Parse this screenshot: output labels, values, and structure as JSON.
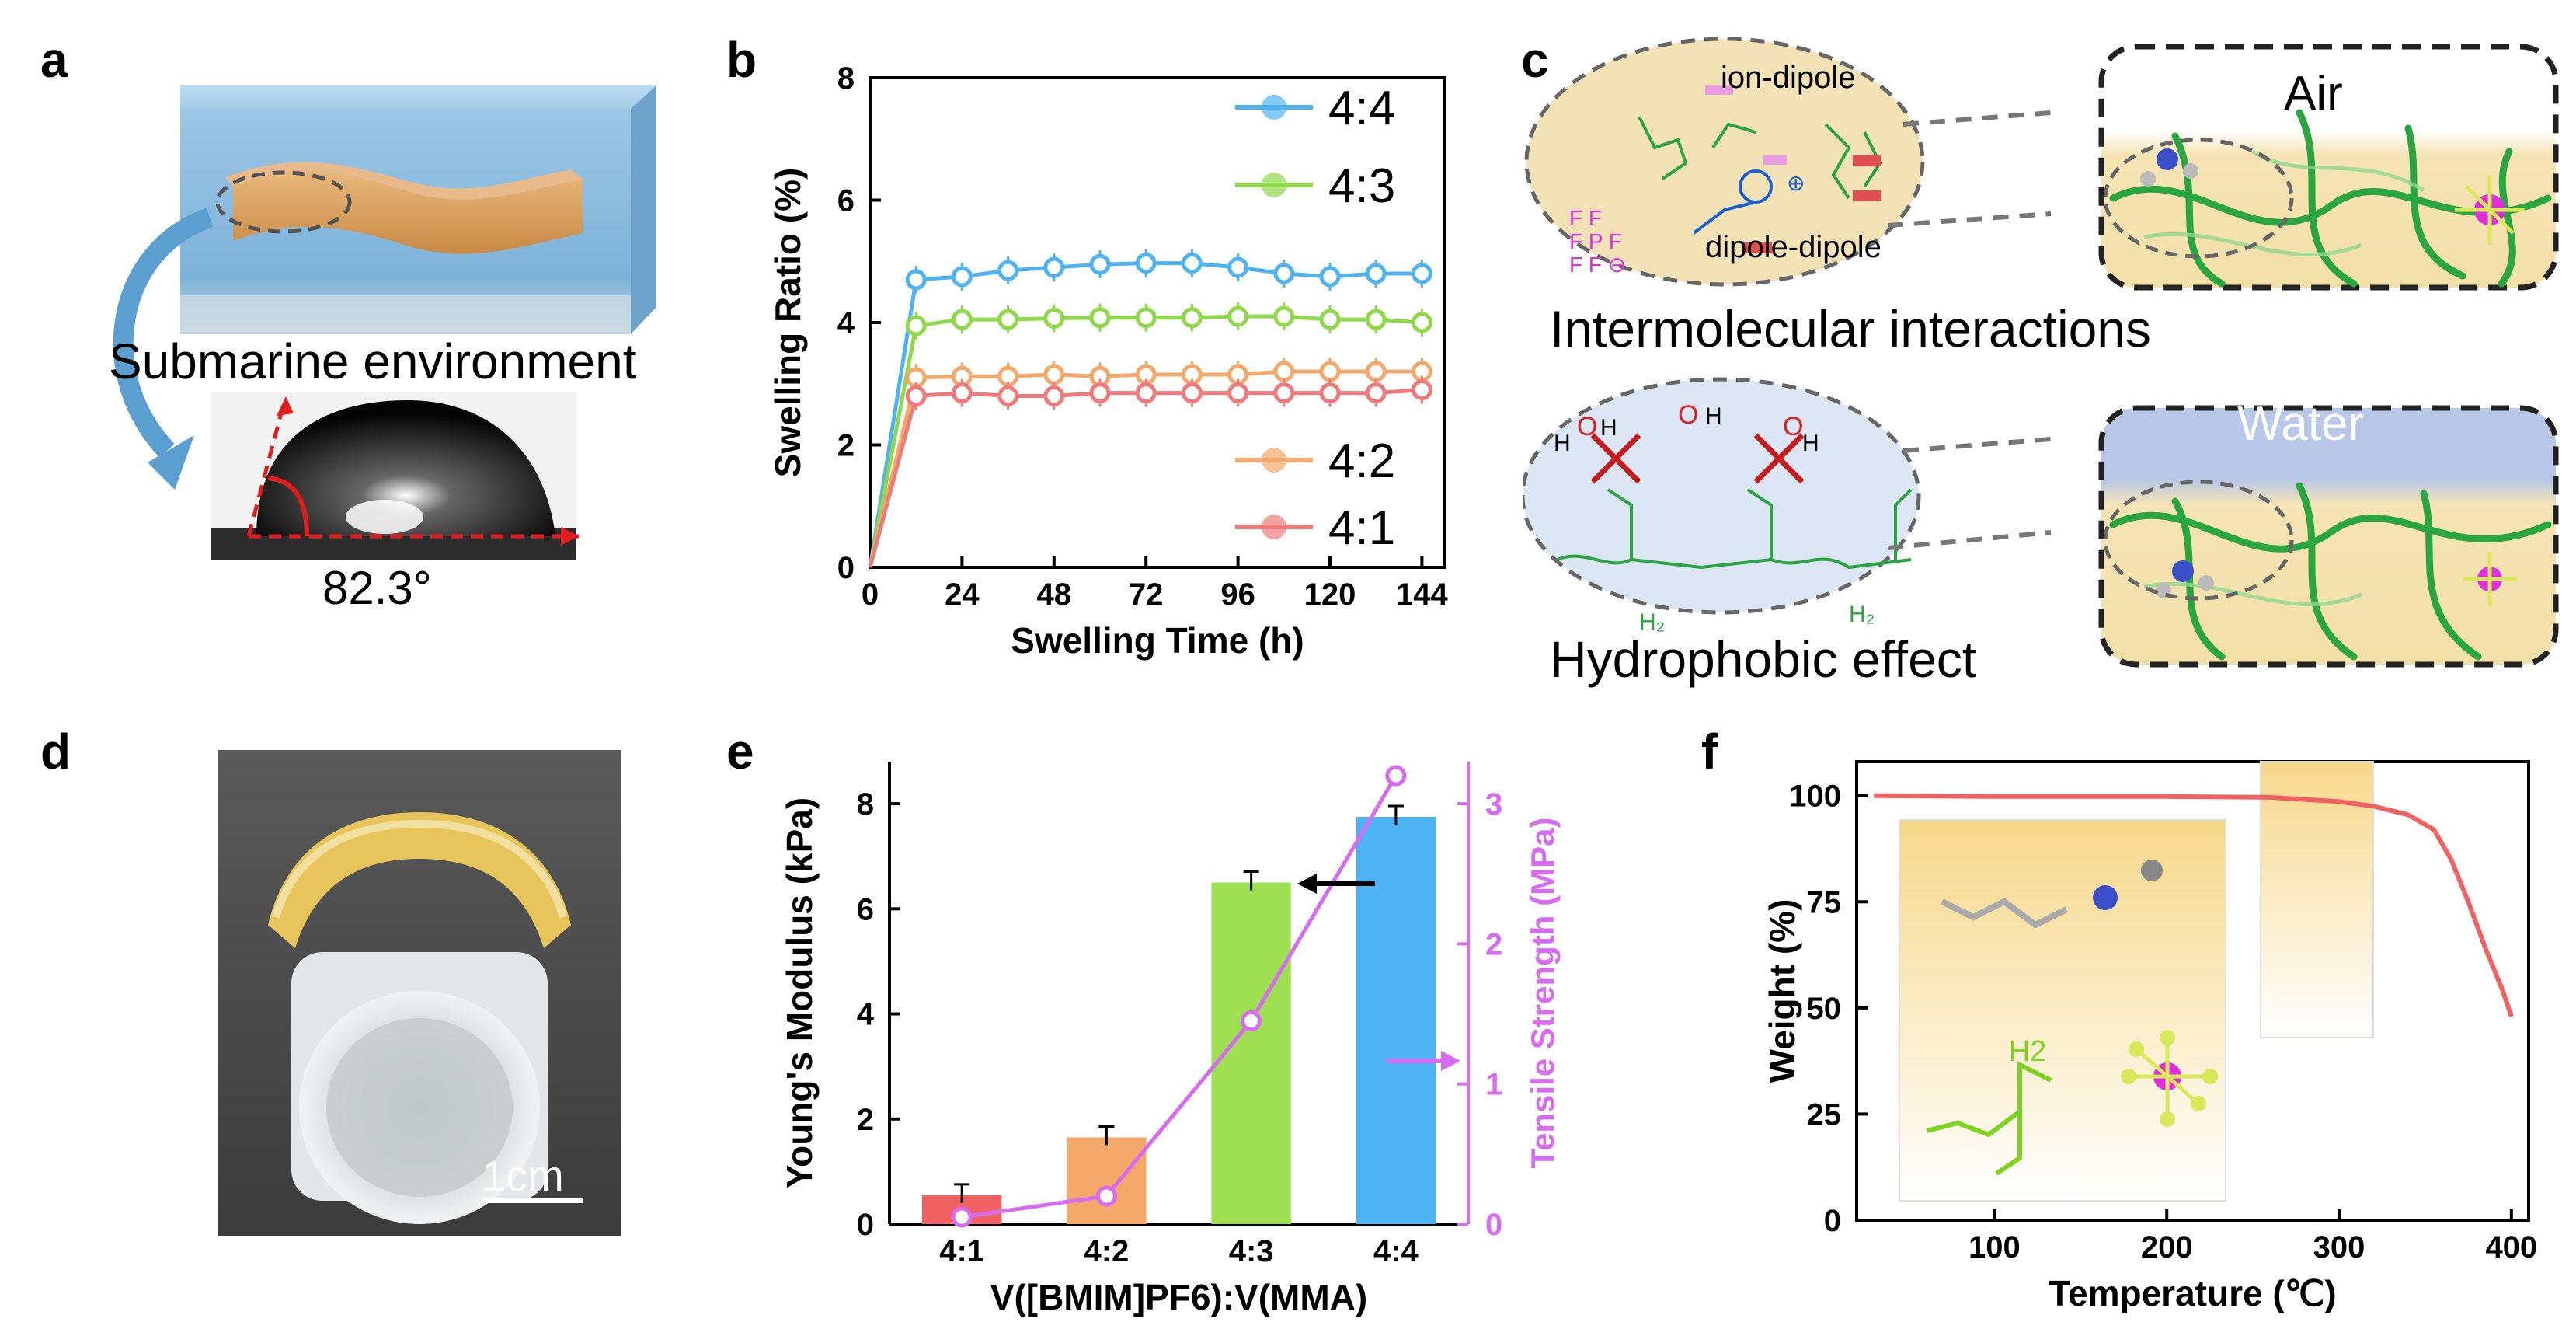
{
  "panels": {
    "a": {
      "letter": "a",
      "caption": "Submarine environment",
      "angle": "82.3°",
      "colors": {
        "water": "#7fb3d8",
        "material": "#d9a05b",
        "arrow": "#5a9fd0"
      }
    },
    "b": {
      "letter": "b",
      "legend": [
        "4:4",
        "4:3",
        "4:2",
        "4:1"
      ]
    },
    "c": {
      "letter": "c",
      "ion_dipole_label": "ion-dipole",
      "dipole_dipole_label": "dipole-dipole",
      "air_label": "Air",
      "water_label": "Water",
      "intermolecular_title": "Intermolecular interactions",
      "hydrophobic_title": "Hydrophobic effect",
      "pf6_label": "F F F P F F F",
      "colors": {
        "bubble_top": "#f3e2b5",
        "bubble_bottom": "#dde6f4",
        "network": "#2aa640",
        "pf6": "#e02de0"
      }
    },
    "d": {
      "letter": "d",
      "scale_label": "1cm"
    },
    "e": {
      "letter": "e"
    },
    "f": {
      "letter": "f",
      "inset_label": "H2",
      "colors": {
        "curve": "#f06262",
        "inset_fill": "#f7d88a"
      }
    }
  },
  "chart_data": [
    {
      "panel": "b",
      "type": "line",
      "xlabel": "Swelling Time (h)",
      "ylabel": "Swelling Ratio (%)",
      "xlim": [
        0,
        150
      ],
      "ylim": [
        0,
        8
      ],
      "xticks": [
        0,
        24,
        48,
        72,
        96,
        120,
        144
      ],
      "yticks": [
        0,
        2,
        4,
        6,
        8
      ],
      "legend_position": "right",
      "x": [
        0,
        12,
        24,
        36,
        48,
        60,
        72,
        84,
        96,
        108,
        120,
        132,
        144
      ],
      "series": [
        {
          "name": "4:4",
          "color": "#4eb3f0",
          "values": [
            0,
            4.7,
            4.75,
            4.85,
            4.9,
            4.95,
            4.97,
            4.97,
            4.9,
            4.8,
            4.75,
            4.8,
            4.8
          ]
        },
        {
          "name": "4:3",
          "color": "#8fd84a",
          "values": [
            0,
            3.95,
            4.05,
            4.05,
            4.07,
            4.08,
            4.08,
            4.08,
            4.1,
            4.1,
            4.05,
            4.05,
            4.0
          ]
        },
        {
          "name": "4:2",
          "color": "#f4a86a",
          "values": [
            0,
            3.1,
            3.12,
            3.12,
            3.15,
            3.12,
            3.15,
            3.15,
            3.15,
            3.2,
            3.2,
            3.2,
            3.2
          ]
        },
        {
          "name": "4:1",
          "color": "#ee7a7a",
          "values": [
            0,
            2.8,
            2.85,
            2.8,
            2.8,
            2.85,
            2.85,
            2.85,
            2.85,
            2.85,
            2.85,
            2.85,
            2.9
          ]
        }
      ]
    },
    {
      "panel": "e",
      "type": "bar",
      "xlabel": "V([BMIM]PF6):V(MMA)",
      "ylabel": "Young's Modulus (kPa)",
      "y2label": "Tensile Strength (MPa)",
      "categories": [
        "4:1",
        "4:2",
        "4:3",
        "4:4"
      ],
      "ylim": [
        0,
        8.8
      ],
      "yticks": [
        0,
        2,
        4,
        6,
        8
      ],
      "y2lim": [
        0,
        3.3
      ],
      "y2ticks": [
        0,
        1,
        2,
        3
      ],
      "series": [
        {
          "name": "Young's Modulus",
          "values": [
            0.55,
            1.65,
            6.5,
            7.75
          ],
          "colors": [
            "#f06262",
            "#f4a86a",
            "#9ee052",
            "#4db3f3"
          ]
        },
        {
          "name": "Tensile Strength",
          "axis": "right",
          "color": "#d86cf0",
          "values": [
            0.05,
            0.2,
            1.45,
            3.2
          ]
        }
      ]
    },
    {
      "panel": "f",
      "type": "line",
      "xlabel": "Temperature (℃)",
      "ylabel": "Weight (%)",
      "xlim": [
        20,
        410
      ],
      "ylim": [
        0,
        108
      ],
      "xticks": [
        100,
        200,
        300,
        400
      ],
      "yticks": [
        0,
        25,
        50,
        75,
        100
      ],
      "series": [
        {
          "name": "",
          "color": "#f06262",
          "x": [
            30,
            100,
            200,
            260,
            300,
            320,
            340,
            355,
            365,
            375,
            385,
            395,
            400
          ],
          "values": [
            100,
            99.8,
            99.8,
            99.6,
            98.6,
            97.5,
            95.5,
            92,
            85,
            75,
            64,
            54,
            48
          ]
        }
      ]
    }
  ]
}
